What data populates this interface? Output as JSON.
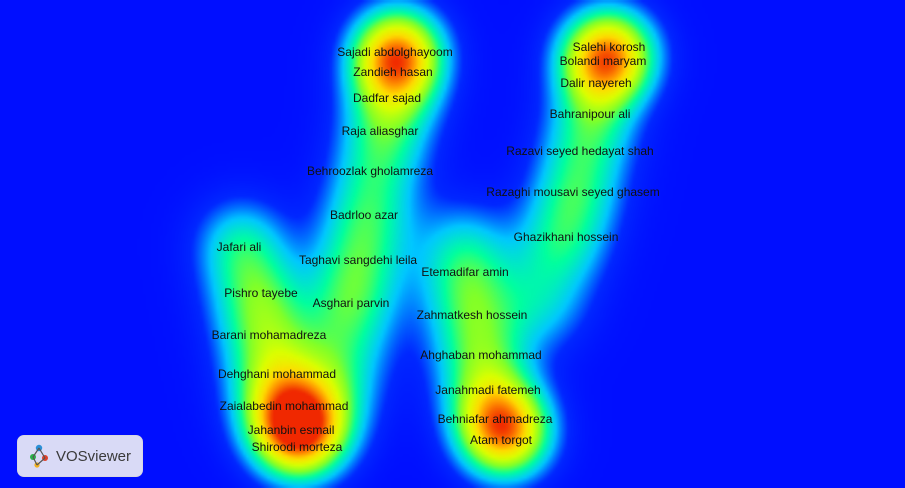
{
  "app": {
    "logo_text": "VOSviewer"
  },
  "nodes": [
    {
      "label": "Sajadi abdolghayoom",
      "weight": 1.0
    },
    {
      "label": "Zandieh hasan",
      "weight": 0.9
    },
    {
      "label": "Dadfar sajad",
      "weight": 0.6
    },
    {
      "label": "Raja aliasghar",
      "weight": 0.45
    },
    {
      "label": "Behroozlak gholamreza",
      "weight": 0.4
    },
    {
      "label": "Badrloo azar",
      "weight": 0.4
    },
    {
      "label": "Taghavi sangdehi leila",
      "weight": 0.4
    },
    {
      "label": "Jafari ali",
      "weight": 0.45
    },
    {
      "label": "Pishro tayebe",
      "weight": 0.45
    },
    {
      "label": "Asghari parvin",
      "weight": 0.4
    },
    {
      "label": "Barani mohamadreza",
      "weight": 0.45
    },
    {
      "label": "Dehghani mohammad",
      "weight": 0.6
    },
    {
      "label": "Zaialabedin mohammad",
      "weight": 0.9
    },
    {
      "label": "Jahanbin esmail",
      "weight": 0.95
    },
    {
      "label": "Shiroodi morteza",
      "weight": 0.95
    },
    {
      "label": "Salehi korosh",
      "weight": 1.0
    },
    {
      "label": "Bolandi maryam",
      "weight": 0.95
    },
    {
      "label": "Dalir nayereh",
      "weight": 0.8
    },
    {
      "label": "Bahranipour ali",
      "weight": 0.55
    },
    {
      "label": "Razavi seyed hedayat shah",
      "weight": 0.45
    },
    {
      "label": "Razaghi mousavi seyed ghasem",
      "weight": 0.5
    },
    {
      "label": "Ghazikhani hossein",
      "weight": 0.4
    },
    {
      "label": "Etemadifar amin",
      "weight": 0.4
    },
    {
      "label": "Zahmatkesh hossein",
      "weight": 0.4
    },
    {
      "label": "Ahghaban mohammad",
      "weight": 0.45
    },
    {
      "label": "Janahmadi fatemeh",
      "weight": 0.6
    },
    {
      "label": "Behniafar ahmadreza",
      "weight": 0.9
    },
    {
      "label": "Atam torgot",
      "weight": 1.0
    }
  ]
}
